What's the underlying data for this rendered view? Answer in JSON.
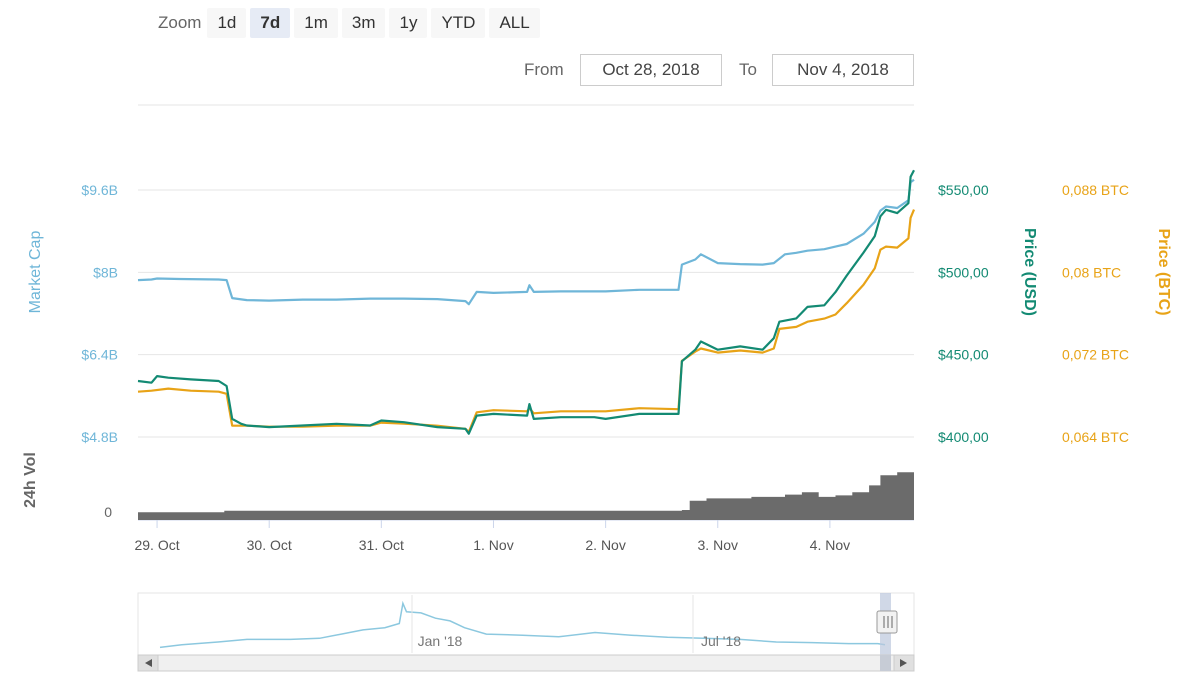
{
  "range_selector": {
    "zoom_label": "Zoom",
    "buttons": [
      "1d",
      "7d",
      "1m",
      "3m",
      "1y",
      "YTD",
      "ALL"
    ],
    "selected": "7d",
    "from_label": "From",
    "from_value": "Oct 28, 2018",
    "to_label": "To",
    "to_value": "Nov 4, 2018"
  },
  "colors": {
    "market_cap": "#6fb6d8",
    "price_usd": "#138a73",
    "price_btc": "#e8a317",
    "volume": "#6b6b6b",
    "navigator": "#8cc8df"
  },
  "chart_data": [
    {
      "type": "line",
      "x": [
        "29. Oct",
        "30. Oct",
        "31. Oct",
        "1. Nov",
        "2. Nov",
        "3. Nov",
        "4. Nov"
      ],
      "series": [
        {
          "name": "Market Cap",
          "axis": "Market Cap",
          "points": [
            [
              28.83,
              7.85
            ],
            [
              28.95,
              7.86
            ],
            [
              29.0,
              7.88
            ],
            [
              29.2,
              7.87
            ],
            [
              29.55,
              7.86
            ],
            [
              29.62,
              7.85
            ],
            [
              29.67,
              7.5
            ],
            [
              29.8,
              7.46
            ],
            [
              30.0,
              7.45
            ],
            [
              30.3,
              7.47
            ],
            [
              30.6,
              7.47
            ],
            [
              30.9,
              7.49
            ],
            [
              31.2,
              7.49
            ],
            [
              31.5,
              7.48
            ],
            [
              31.75,
              7.44
            ],
            [
              31.78,
              7.38
            ],
            [
              31.85,
              7.62
            ],
            [
              32.0,
              7.6
            ],
            [
              32.3,
              7.62
            ],
            [
              32.32,
              7.75
            ],
            [
              32.36,
              7.62
            ],
            [
              32.6,
              7.63
            ],
            [
              33.0,
              7.63
            ],
            [
              33.3,
              7.66
            ],
            [
              33.65,
              7.66
            ],
            [
              33.68,
              8.15
            ],
            [
              33.8,
              8.25
            ],
            [
              33.85,
              8.35
            ],
            [
              34.0,
              8.18
            ],
            [
              34.2,
              8.16
            ],
            [
              34.4,
              8.15
            ],
            [
              34.5,
              8.18
            ],
            [
              34.6,
              8.35
            ],
            [
              34.7,
              8.38
            ],
            [
              34.8,
              8.42
            ],
            [
              34.95,
              8.45
            ],
            [
              35.05,
              8.5
            ],
            [
              35.15,
              8.55
            ],
            [
              35.3,
              8.75
            ],
            [
              35.4,
              8.98
            ],
            [
              35.45,
              9.2
            ],
            [
              35.5,
              9.28
            ],
            [
              35.6,
              9.25
            ],
            [
              35.7,
              9.4
            ],
            [
              35.72,
              9.75
            ],
            [
              35.75,
              9.8
            ]
          ]
        },
        {
          "name": "Price (USD)",
          "axis": "Price (USD)",
          "points": [
            [
              28.83,
              434
            ],
            [
              28.95,
              433
            ],
            [
              29.0,
              437
            ],
            [
              29.1,
              436
            ],
            [
              29.3,
              435
            ],
            [
              29.55,
              434
            ],
            [
              29.62,
              431
            ],
            [
              29.67,
              411
            ],
            [
              29.75,
              408
            ],
            [
              29.8,
              407
            ],
            [
              30.0,
              406
            ],
            [
              30.3,
              407
            ],
            [
              30.6,
              408
            ],
            [
              30.9,
              407
            ],
            [
              31.0,
              410
            ],
            [
              31.2,
              409
            ],
            [
              31.5,
              406
            ],
            [
              31.75,
              405
            ],
            [
              31.78,
              402
            ],
            [
              31.85,
              413
            ],
            [
              32.0,
              414
            ],
            [
              32.3,
              413
            ],
            [
              32.32,
              420
            ],
            [
              32.36,
              411
            ],
            [
              32.6,
              412
            ],
            [
              32.9,
              412
            ],
            [
              33.0,
              411
            ],
            [
              33.3,
              414
            ],
            [
              33.65,
              414
            ],
            [
              33.68,
              446
            ],
            [
              33.8,
              453
            ],
            [
              33.85,
              458
            ],
            [
              34.0,
              453
            ],
            [
              34.2,
              455
            ],
            [
              34.4,
              453
            ],
            [
              34.5,
              460
            ],
            [
              34.55,
              470
            ],
            [
              34.7,
              472
            ],
            [
              34.8,
              479
            ],
            [
              34.95,
              480
            ],
            [
              35.05,
              488
            ],
            [
              35.15,
              498
            ],
            [
              35.3,
              512
            ],
            [
              35.4,
              522
            ],
            [
              35.45,
              534
            ],
            [
              35.5,
              538
            ],
            [
              35.6,
              536
            ],
            [
              35.7,
              542
            ],
            [
              35.72,
              558
            ],
            [
              35.75,
              562
            ]
          ]
        },
        {
          "name": "Price (BTC)",
          "axis": "Price (BTC)",
          "points": [
            [
              28.83,
              0.0684
            ],
            [
              28.95,
              0.0685
            ],
            [
              29.1,
              0.0687
            ],
            [
              29.3,
              0.0685
            ],
            [
              29.55,
              0.0684
            ],
            [
              29.62,
              0.0682
            ],
            [
              29.67,
              0.0651
            ],
            [
              29.8,
              0.0651
            ],
            [
              30.0,
              0.065
            ],
            [
              30.3,
              0.065
            ],
            [
              30.6,
              0.0651
            ],
            [
              30.9,
              0.0651
            ],
            [
              31.0,
              0.0654
            ],
            [
              31.2,
              0.0653
            ],
            [
              31.5,
              0.0651
            ],
            [
              31.75,
              0.0648
            ],
            [
              31.78,
              0.0645
            ],
            [
              31.85,
              0.0664
            ],
            [
              32.0,
              0.0666
            ],
            [
              32.3,
              0.0665
            ],
            [
              32.32,
              0.0668
            ],
            [
              32.36,
              0.0663
            ],
            [
              32.6,
              0.0665
            ],
            [
              33.0,
              0.0665
            ],
            [
              33.3,
              0.0668
            ],
            [
              33.65,
              0.0667
            ],
            [
              33.68,
              0.0714
            ],
            [
              33.8,
              0.0723
            ],
            [
              33.85,
              0.0726
            ],
            [
              34.0,
              0.0722
            ],
            [
              34.2,
              0.0724
            ],
            [
              34.4,
              0.0722
            ],
            [
              34.5,
              0.0726
            ],
            [
              34.55,
              0.0745
            ],
            [
              34.7,
              0.0747
            ],
            [
              34.8,
              0.0752
            ],
            [
              34.95,
              0.0755
            ],
            [
              35.05,
              0.0759
            ],
            [
              35.15,
              0.077
            ],
            [
              35.3,
              0.0788
            ],
            [
              35.4,
              0.0804
            ],
            [
              35.45,
              0.0822
            ],
            [
              35.5,
              0.0825
            ],
            [
              35.6,
              0.0824
            ],
            [
              35.7,
              0.0833
            ],
            [
              35.72,
              0.0853
            ],
            [
              35.75,
              0.0861
            ]
          ]
        }
      ],
      "axes": {
        "market_cap": {
          "title": "Market Cap",
          "ticks": [
            "$4.8B",
            "$6.4B",
            "$8B",
            "$9.6B"
          ],
          "ylim": [
            4.8,
            9.6
          ]
        },
        "price_usd": {
          "title": "Price (USD)",
          "ticks": [
            "$400,00",
            "$450,00",
            "$500,00",
            "$550,00"
          ],
          "ylim": [
            400,
            550
          ]
        },
        "price_btc": {
          "title": "Price (BTC)",
          "ticks": [
            "0,064 BTC",
            "0,072 BTC",
            "0,08 BTC",
            "0,088 BTC"
          ],
          "ylim": [
            0.064,
            0.088
          ]
        }
      },
      "grid": true
    },
    {
      "type": "area",
      "title": "24h Vol",
      "yticks": [
        "0"
      ],
      "values_relative": [
        [
          28.83,
          0.1
        ],
        [
          29.6,
          0.12
        ],
        [
          30.5,
          0.12
        ],
        [
          31.5,
          0.12
        ],
        [
          32.5,
          0.12
        ],
        [
          33.68,
          0.13
        ],
        [
          33.75,
          0.25
        ],
        [
          33.9,
          0.28
        ],
        [
          34.3,
          0.3
        ],
        [
          34.6,
          0.33
        ],
        [
          34.75,
          0.36
        ],
        [
          34.9,
          0.3
        ],
        [
          35.05,
          0.32
        ],
        [
          35.2,
          0.36
        ],
        [
          35.35,
          0.45
        ],
        [
          35.45,
          0.58
        ],
        [
          35.6,
          0.62
        ],
        [
          35.75,
          0.7
        ]
      ]
    },
    {
      "type": "area",
      "title": "Navigator (all time)",
      "x_ticks": [
        "Jan '18",
        "Jul '18"
      ],
      "values_relative": [
        [
          0.0,
          0.05
        ],
        [
          0.03,
          0.1
        ],
        [
          0.08,
          0.15
        ],
        [
          0.12,
          0.2
        ],
        [
          0.18,
          0.2
        ],
        [
          0.22,
          0.22
        ],
        [
          0.25,
          0.3
        ],
        [
          0.28,
          0.38
        ],
        [
          0.31,
          0.42
        ],
        [
          0.33,
          0.5
        ],
        [
          0.335,
          0.88
        ],
        [
          0.34,
          0.72
        ],
        [
          0.36,
          0.7
        ],
        [
          0.38,
          0.6
        ],
        [
          0.4,
          0.55
        ],
        [
          0.42,
          0.42
        ],
        [
          0.45,
          0.3
        ],
        [
          0.5,
          0.28
        ],
        [
          0.55,
          0.25
        ],
        [
          0.6,
          0.33
        ],
        [
          0.65,
          0.28
        ],
        [
          0.7,
          0.24
        ],
        [
          0.75,
          0.22
        ],
        [
          0.8,
          0.2
        ],
        [
          0.85,
          0.15
        ],
        [
          0.9,
          0.14
        ],
        [
          0.95,
          0.12
        ],
        [
          0.99,
          0.12
        ],
        [
          1.0,
          0.1
        ]
      ]
    }
  ]
}
